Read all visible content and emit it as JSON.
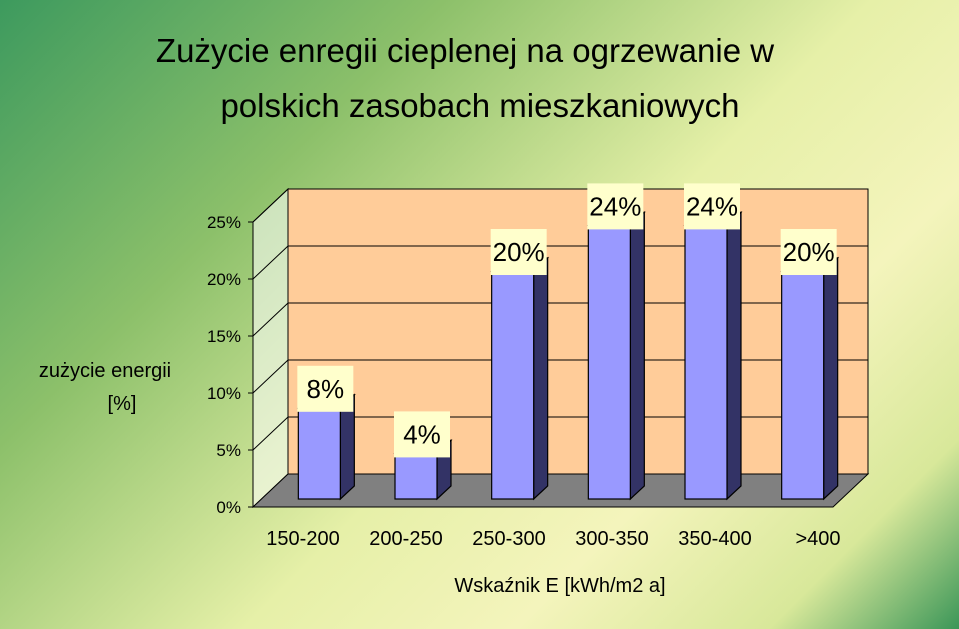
{
  "chart_data": {
    "type": "bar",
    "title_lines": [
      "Zużycie enregii cieplenej na ogrzewanie w",
      "polskich zasobach mieszkaniowych"
    ],
    "ylabel_lines": [
      "zużycie energii",
      "[%]"
    ],
    "xlabel": "Wskaźnik E [kWh/m2 a]",
    "categories": [
      "150-200",
      "200-250",
      "250-300",
      "300-350",
      "350-400",
      ">400"
    ],
    "values": [
      8,
      4,
      20,
      24,
      24,
      20
    ],
    "data_labels": [
      "8%",
      "4%",
      "20%",
      "24%",
      "24%",
      "20%"
    ],
    "ylim": [
      0,
      25
    ],
    "yticks": [
      "0%",
      "5%",
      "10%",
      "15%",
      "20%",
      "25%"
    ],
    "grid": true,
    "three_d": true,
    "colors": {
      "bar_front": "#9999ff",
      "bar_side": "#333366",
      "plot_back": "#ffcc99",
      "floor": "#808080",
      "label_bg": "#ffffcc"
    }
  }
}
